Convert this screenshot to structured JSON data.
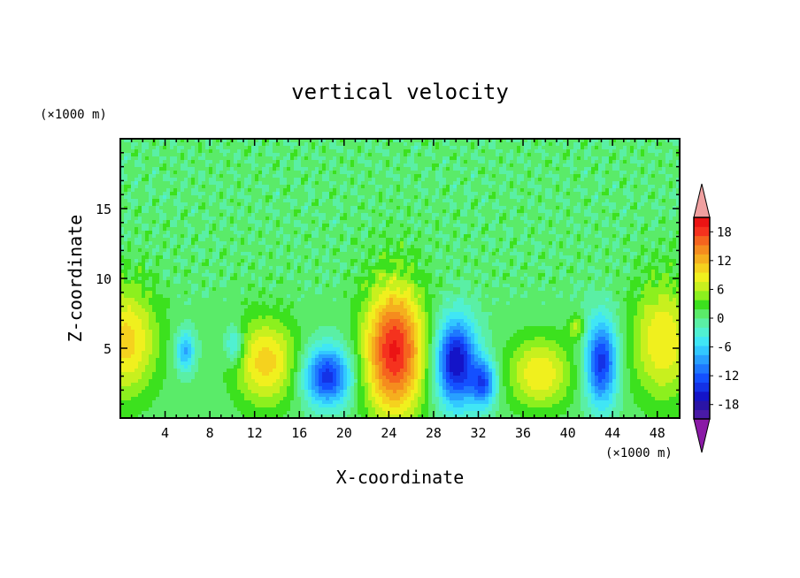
{
  "chart_data": {
    "type": "heatmap",
    "title": "vertical velocity",
    "xlabel": "X-coordinate",
    "ylabel": "Z-coordinate",
    "x_unit": "(×1000 m)",
    "y_unit": "(×1000 m)",
    "xlim": [
      0,
      50
    ],
    "ylim": [
      0,
      20
    ],
    "x_ticks": [
      4,
      8,
      12,
      16,
      20,
      24,
      28,
      32,
      36,
      40,
      44,
      48
    ],
    "y_ticks": [
      5,
      10,
      15
    ],
    "colorbar": {
      "ticks": [
        18,
        12,
        6,
        0,
        -6,
        -12,
        -18
      ],
      "range": [
        -21,
        21
      ],
      "extend": "both",
      "colors": [
        "#8a1aa6",
        "#4a1aa6",
        "#2a14a6",
        "#1414c8",
        "#1432e6",
        "#1450ff",
        "#1e78ff",
        "#28a0ff",
        "#32c8ff",
        "#40e6f5",
        "#50f0d2",
        "#5aefa5",
        "#5aeb69",
        "#3ce11e",
        "#8cf01e",
        "#c8f01e",
        "#f0f01e",
        "#f5d21e",
        "#f5af1e",
        "#f58c1e",
        "#f5641e",
        "#f5321e",
        "#eb1414",
        "#f0a0a0"
      ]
    },
    "field": {
      "background": 0.5,
      "blobs": [
        {
          "x": 0.5,
          "y": 5.5,
          "sx": 2.0,
          "sy": 2.8,
          "w": 10
        },
        {
          "x": 5.8,
          "y": 4.8,
          "sx": 0.6,
          "sy": 1.0,
          "w": -9
        },
        {
          "x": 10.2,
          "y": 5.2,
          "sx": 0.6,
          "sy": 1.0,
          "w": -7
        },
        {
          "x": 13.0,
          "y": 4.0,
          "sx": 2.0,
          "sy": 2.2,
          "w": 10
        },
        {
          "x": 18.5,
          "y": 3.0,
          "sx": 1.5,
          "sy": 1.5,
          "w": -15
        },
        {
          "x": 24.5,
          "y": 4.8,
          "sx": 1.9,
          "sy": 3.3,
          "w": 19
        },
        {
          "x": 30.0,
          "y": 4.0,
          "sx": 1.3,
          "sy": 2.2,
          "w": -18
        },
        {
          "x": 32.5,
          "y": 2.5,
          "sx": 0.8,
          "sy": 1.2,
          "w": -12
        },
        {
          "x": 37.5,
          "y": 3.2,
          "sx": 2.0,
          "sy": 1.8,
          "w": 9
        },
        {
          "x": 40.8,
          "y": 6.5,
          "sx": 0.5,
          "sy": 0.6,
          "w": 6
        },
        {
          "x": 43.0,
          "y": 4.0,
          "sx": 1.0,
          "sy": 2.2,
          "w": -15
        },
        {
          "x": 48.5,
          "y": 5.5,
          "sx": 2.0,
          "sy": 3.0,
          "w": 9
        }
      ]
    }
  }
}
